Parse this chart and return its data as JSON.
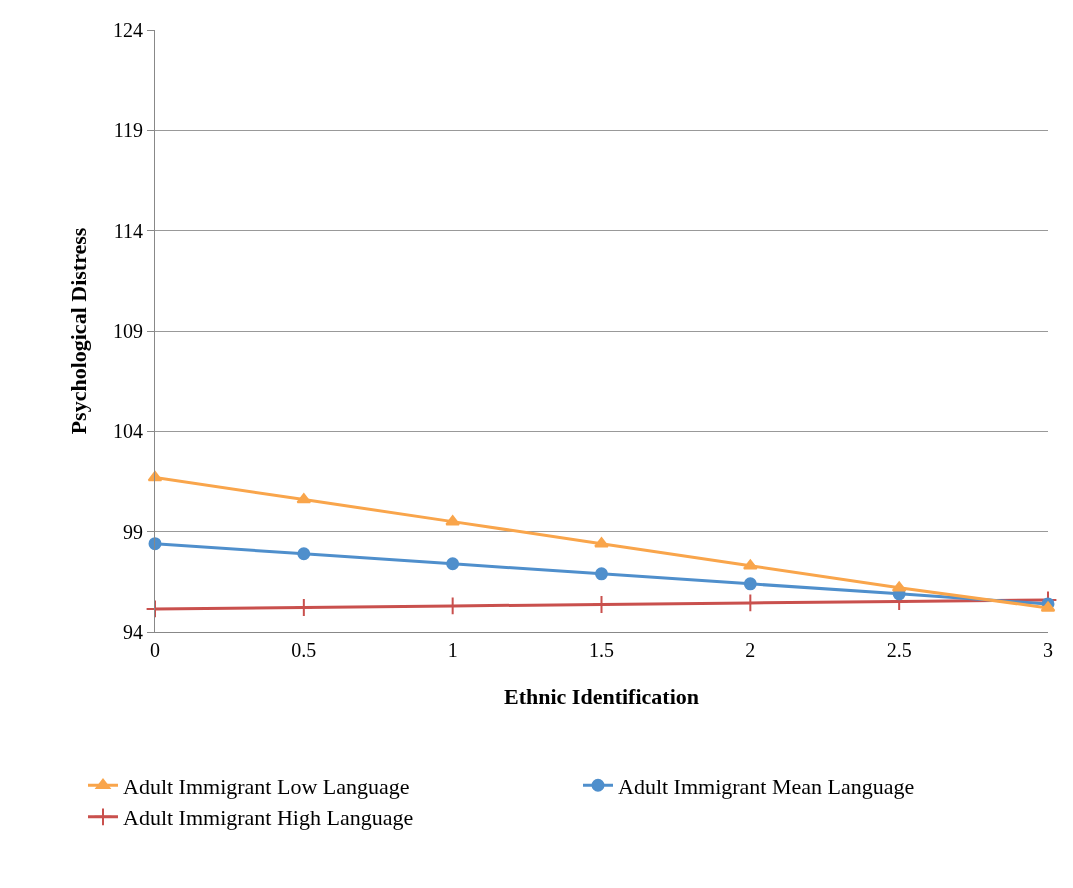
{
  "chart_data": {
    "type": "line",
    "xlabel": "Ethnic Identification",
    "ylabel": "Psychological Distress",
    "x": [
      0,
      0.5,
      1,
      1.5,
      2,
      2.5,
      3
    ],
    "xlim": [
      0,
      3
    ],
    "xticks": [
      0,
      0.5,
      1,
      1.5,
      2,
      2.5,
      3
    ],
    "ylim": [
      94,
      124
    ],
    "yticks": [
      94,
      99,
      104,
      109,
      114,
      119,
      124
    ],
    "grid": "y",
    "legend": "bottom",
    "series": [
      {
        "name": "Adult Immigrant Low Language",
        "color": "#f9a54b",
        "marker": "triangle",
        "values": [
          101.7,
          100.6,
          99.5,
          98.4,
          97.3,
          96.2,
          95.2
        ]
      },
      {
        "name": "Adult Immigrant Mean Language",
        "color": "#4f8fcc",
        "marker": "circle",
        "values": [
          98.4,
          97.9,
          97.4,
          96.9,
          96.4,
          95.9,
          95.4
        ]
      },
      {
        "name": "Adult Immigrant High Language",
        "color": "#c9504d",
        "marker": "cross",
        "values": [
          95.15,
          95.22,
          95.3,
          95.37,
          95.45,
          95.52,
          95.6
        ]
      }
    ]
  }
}
